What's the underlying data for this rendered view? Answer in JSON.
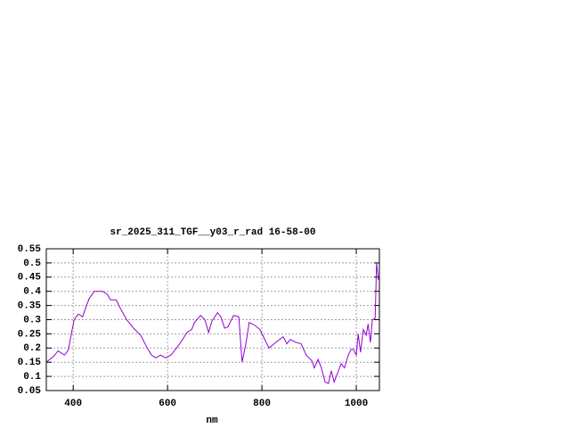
{
  "chart_data": {
    "type": "line",
    "title": "sr_2025_311_TGF__y03_r_rad 16-58-00",
    "x_label": "nm",
    "x": [
      343,
      358,
      368,
      377,
      382,
      390,
      396,
      402,
      411,
      420,
      426,
      434,
      445,
      462,
      472,
      479,
      491,
      500,
      513,
      528,
      543,
      557,
      566,
      575,
      585,
      596,
      607,
      619,
      632,
      641,
      651,
      657,
      670,
      679,
      687,
      694,
      706,
      713,
      721,
      728,
      740,
      751,
      758,
      766,
      773,
      785,
      796,
      806,
      815,
      826,
      845,
      853,
      860,
      872,
      883,
      894,
      906,
      911,
      919,
      926,
      934,
      941,
      947,
      953,
      960,
      968,
      975,
      983,
      989,
      994,
      1000,
      1004,
      1009,
      1015,
      1021,
      1025,
      1030,
      1034,
      1040,
      1043,
      1047
    ],
    "series": [
      {
        "color": "#9400d3",
        "values": [
          0.15,
          0.17,
          0.19,
          0.18,
          0.175,
          0.195,
          0.25,
          0.3,
          0.32,
          0.31,
          0.34,
          0.375,
          0.4,
          0.4,
          0.39,
          0.37,
          0.37,
          0.34,
          0.3,
          0.27,
          0.245,
          0.2,
          0.175,
          0.165,
          0.175,
          0.165,
          0.175,
          0.2,
          0.23,
          0.255,
          0.265,
          0.29,
          0.315,
          0.3,
          0.255,
          0.295,
          0.325,
          0.31,
          0.27,
          0.275,
          0.315,
          0.31,
          0.15,
          0.215,
          0.29,
          0.28,
          0.265,
          0.23,
          0.2,
          0.215,
          0.24,
          0.215,
          0.23,
          0.22,
          0.215,
          0.175,
          0.155,
          0.13,
          0.16,
          0.13,
          0.08,
          0.075,
          0.12,
          0.08,
          0.11,
          0.145,
          0.13,
          0.175,
          0.195,
          0.195,
          0.175,
          0.25,
          0.185,
          0.265,
          0.245,
          0.285,
          0.22,
          0.3,
          0.305,
          0.5,
          0.44
        ]
      }
    ],
    "xlim": [
      343,
      1049
    ],
    "xticks": [
      400,
      600,
      800,
      1000
    ],
    "ylim": [
      0.05,
      0.55
    ],
    "yticks": [
      0.05,
      0.1,
      0.15,
      0.2,
      0.25,
      0.3,
      0.35,
      0.4,
      0.45,
      0.5,
      0.55
    ],
    "grid": true
  }
}
